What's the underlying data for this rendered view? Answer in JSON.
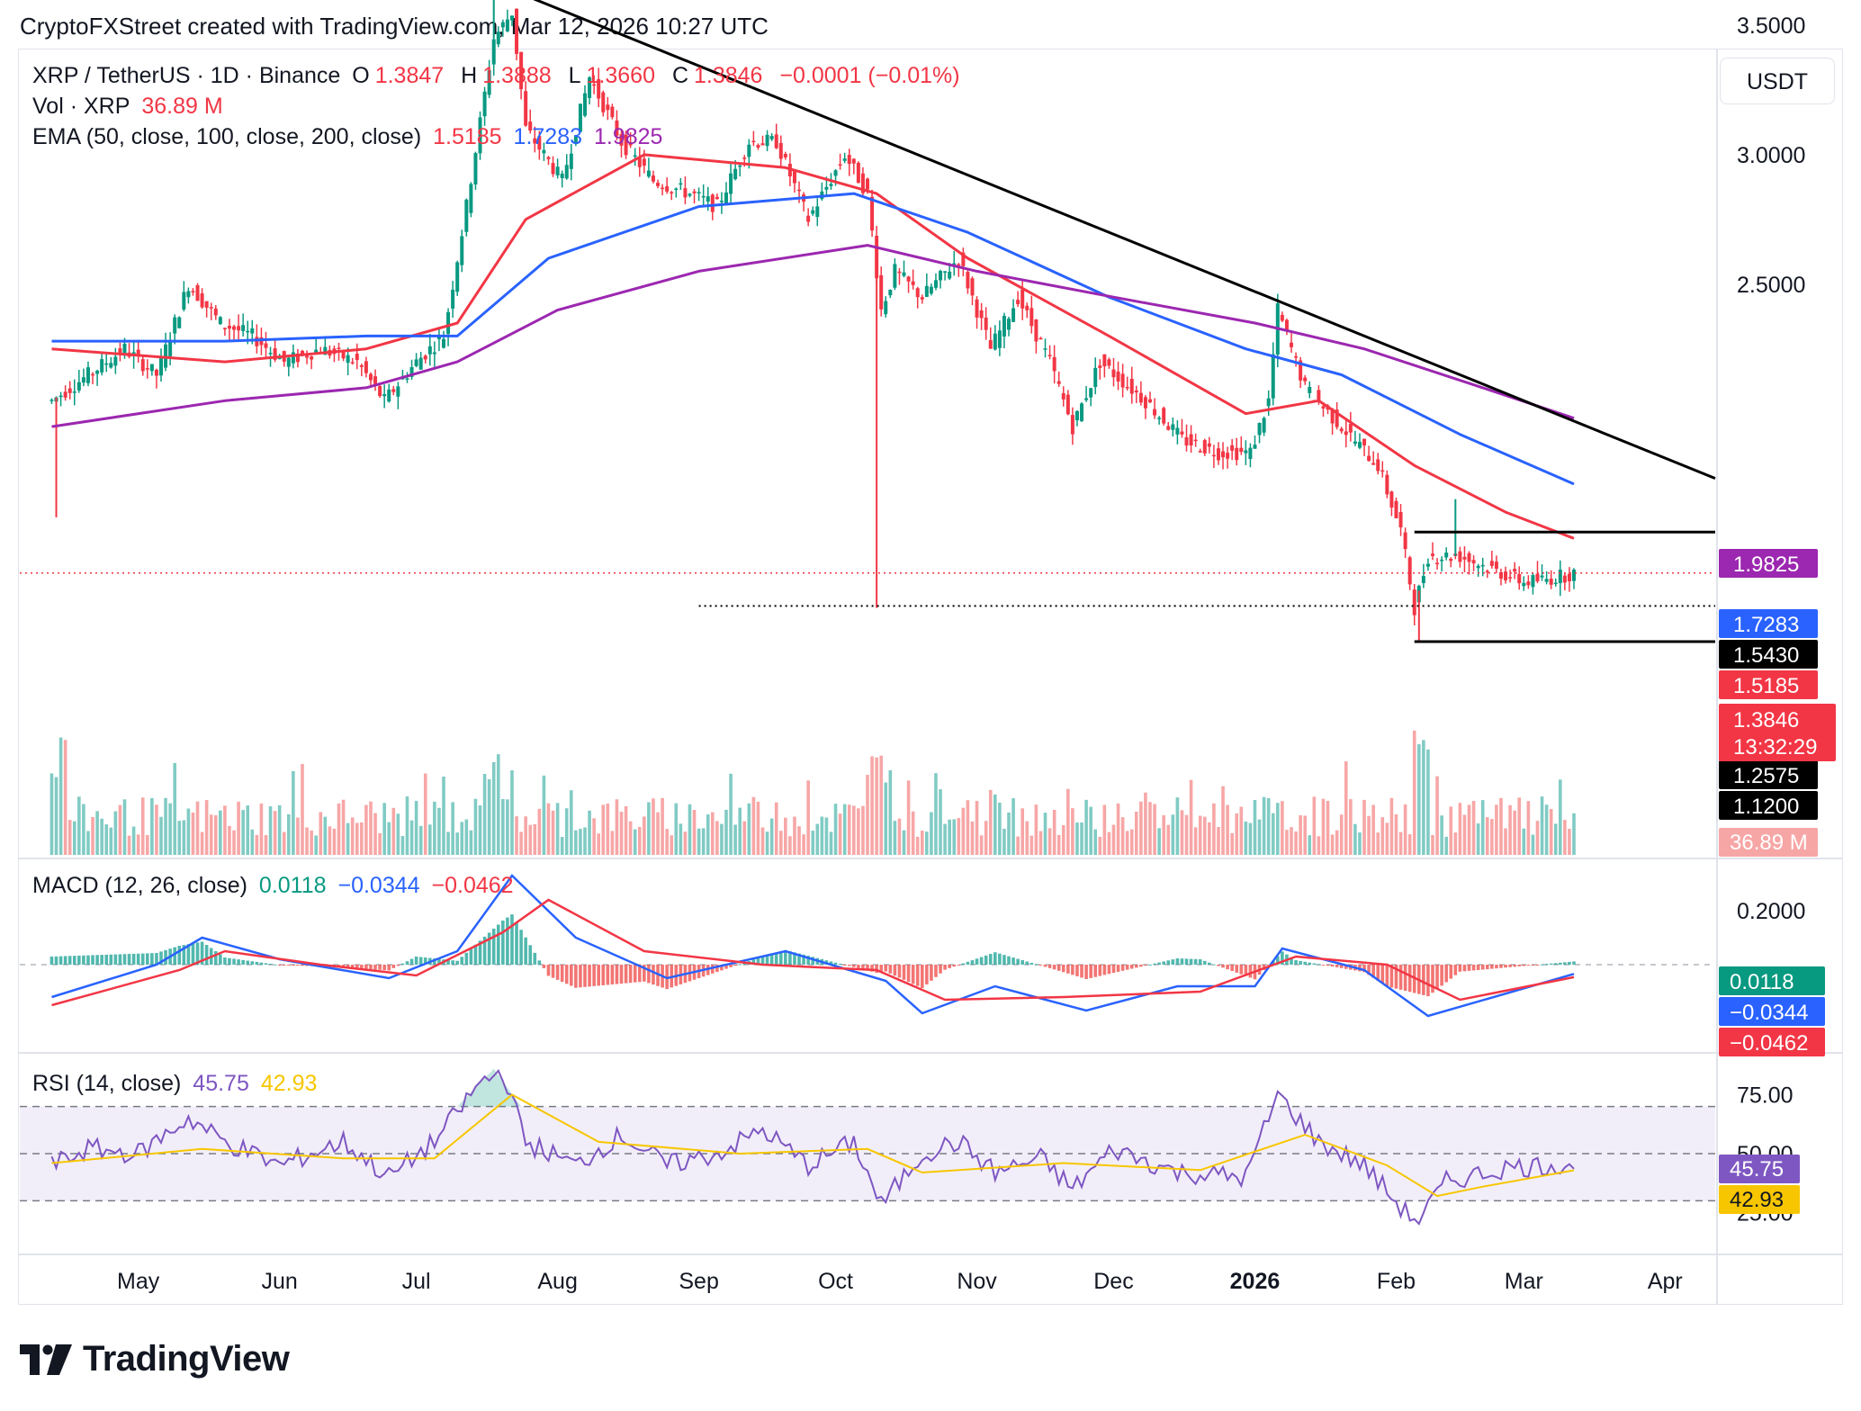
{
  "header": {
    "created_note": "CryptoFXStreet created with TradingView.com, Mar 12, 2026 10:27 UTC"
  },
  "legend": {
    "pair": "XRP / TetherUS · 1D · Binance",
    "o_label": "O",
    "open": "1.3847",
    "h_label": "H",
    "high": "1.3888",
    "l_label": "L",
    "low": "1.3660",
    "c_label": "C",
    "close": "1.3846",
    "change": "−0.0001 (−0.01%)",
    "vol_label": "Vol · XRP",
    "vol_value": "36.89 M",
    "ema_label": "EMA (50, close, 100, close, 200, close)",
    "ema50": "1.5185",
    "ema100": "1.7283",
    "ema200": "1.9825",
    "macd_label": "MACD (12, 26, close)",
    "macd_hist": "0.0118",
    "macd_line": "−0.0344",
    "macd_signal": "−0.0462",
    "rsi_label": "RSI (14, close)",
    "rsi": "45.75",
    "rsi_ma": "42.93"
  },
  "currency": "USDT",
  "colors": {
    "up": "#089981",
    "down": "#f23645",
    "ema50": "#f23645",
    "ema100": "#2962ff",
    "ema200": "#9c27b0",
    "rsi": "#7e57c2",
    "rsi_ma": "#f7c600",
    "vol_up": "#80cbc4",
    "vol_down": "#f7a6a6"
  },
  "brand": "TradingView",
  "chart_data": [
    {
      "type": "candlestick",
      "pane": "price",
      "symbol": "XRP / TetherUS",
      "interval": "1D",
      "exchange": "Binance",
      "x_ticks": [
        "May",
        "Jun",
        "Jul",
        "Aug",
        "Sep",
        "Oct",
        "Nov",
        "Dec",
        "2026",
        "Feb",
        "Mar",
        "Apr"
      ],
      "y_ticks": [
        "3.5000",
        "3.0000",
        "2.5000"
      ],
      "ylim": [
        0.95,
        3.75
      ],
      "price_path": [
        [
          "2025-04-12",
          2.05
        ],
        [
          "2025-04-20",
          2.15
        ],
        [
          "2025-04-28",
          2.25
        ],
        [
          "2025-05-05",
          2.15
        ],
        [
          "2025-05-12",
          2.5
        ],
        [
          "2025-05-19",
          2.35
        ],
        [
          "2025-05-26",
          2.3
        ],
        [
          "2025-06-02",
          2.2
        ],
        [
          "2025-06-10",
          2.25
        ],
        [
          "2025-06-18",
          2.2
        ],
        [
          "2025-06-24",
          2.05
        ],
        [
          "2025-07-01",
          2.2
        ],
        [
          "2025-07-07",
          2.3
        ],
        [
          "2025-07-12",
          2.8
        ],
        [
          "2025-07-18",
          3.45
        ],
        [
          "2025-07-22",
          3.55
        ],
        [
          "2025-07-25",
          3.1
        ],
        [
          "2025-08-02",
          2.9
        ],
        [
          "2025-08-08",
          3.3
        ],
        [
          "2025-08-15",
          3.05
        ],
        [
          "2025-08-22",
          2.9
        ],
        [
          "2025-08-30",
          2.85
        ],
        [
          "2025-09-05",
          2.8
        ],
        [
          "2025-09-12",
          3.05
        ],
        [
          "2025-09-18",
          3.05
        ],
        [
          "2025-09-25",
          2.75
        ],
        [
          "2025-10-03",
          3.0
        ],
        [
          "2025-10-08",
          2.85
        ],
        [
          "2025-10-11",
          2.4
        ],
        [
          "2025-10-14",
          2.55
        ],
        [
          "2025-10-20",
          2.45
        ],
        [
          "2025-10-28",
          2.6
        ],
        [
          "2025-11-04",
          2.25
        ],
        [
          "2025-11-10",
          2.45
        ],
        [
          "2025-11-17",
          2.2
        ],
        [
          "2025-11-22",
          1.95
        ],
        [
          "2025-11-28",
          2.2
        ],
        [
          "2025-12-08",
          2.05
        ],
        [
          "2025-12-16",
          1.9
        ],
        [
          "2025-12-24",
          1.85
        ],
        [
          "2025-12-31",
          1.85
        ],
        [
          "2026-01-04",
          2.05
        ],
        [
          "2026-01-06",
          2.4
        ],
        [
          "2026-01-12",
          2.1
        ],
        [
          "2026-01-20",
          1.95
        ],
        [
          "2026-01-28",
          1.8
        ],
        [
          "2026-02-02",
          1.55
        ],
        [
          "2026-02-05",
          1.25
        ],
        [
          "2026-02-08",
          1.45
        ],
        [
          "2026-02-15",
          1.45
        ],
        [
          "2026-02-22",
          1.4
        ],
        [
          "2026-03-01",
          1.35
        ],
        [
          "2026-03-06",
          1.36
        ],
        [
          "2026-03-12",
          1.3846
        ]
      ],
      "wicks": [
        [
          "2025-04-13",
          1.6
        ],
        [
          "2025-07-18",
          3.66
        ],
        [
          "2025-10-10",
          1.25
        ],
        [
          "2026-01-06",
          2.41
        ],
        [
          "2026-02-06",
          1.12
        ],
        [
          "2026-02-14",
          1.67
        ]
      ],
      "ema_series": [
        {
          "name": "EMA 50",
          "last": 1.5185,
          "points": [
            [
              "2025-04-12",
              2.25
            ],
            [
              "2025-05-20",
              2.2
            ],
            [
              "2025-06-20",
              2.25
            ],
            [
              "2025-07-10",
              2.35
            ],
            [
              "2025-07-25",
              2.75
            ],
            [
              "2025-08-20",
              3.0
            ],
            [
              "2025-09-20",
              2.95
            ],
            [
              "2025-10-10",
              2.85
            ],
            [
              "2025-10-30",
              2.6
            ],
            [
              "2025-11-30",
              2.3
            ],
            [
              "2025-12-30",
              2.0
            ],
            [
              "2026-01-15",
              2.05
            ],
            [
              "2026-02-05",
              1.8
            ],
            [
              "2026-02-25",
              1.62
            ],
            [
              "2026-03-12",
              1.5185
            ]
          ]
        },
        {
          "name": "EMA 100",
          "last": 1.7283,
          "points": [
            [
              "2025-04-12",
              2.28
            ],
            [
              "2025-05-20",
              2.28
            ],
            [
              "2025-06-20",
              2.3
            ],
            [
              "2025-07-10",
              2.3
            ],
            [
              "2025-07-30",
              2.6
            ],
            [
              "2025-09-01",
              2.8
            ],
            [
              "2025-10-05",
              2.85
            ],
            [
              "2025-10-30",
              2.7
            ],
            [
              "2025-11-30",
              2.45
            ],
            [
              "2025-12-30",
              2.25
            ],
            [
              "2026-01-20",
              2.15
            ],
            [
              "2026-02-15",
              1.92
            ],
            [
              "2026-03-12",
              1.7283
            ]
          ]
        },
        {
          "name": "EMA 200",
          "last": 1.9825,
          "points": [
            [
              "2025-04-12",
              1.95
            ],
            [
              "2025-05-20",
              2.05
            ],
            [
              "2025-06-20",
              2.1
            ],
            [
              "2025-07-10",
              2.2
            ],
            [
              "2025-08-01",
              2.4
            ],
            [
              "2025-09-01",
              2.55
            ],
            [
              "2025-10-08",
              2.65
            ],
            [
              "2025-11-01",
              2.55
            ],
            [
              "2025-12-01",
              2.45
            ],
            [
              "2026-01-01",
              2.35
            ],
            [
              "2026-01-25",
              2.25
            ],
            [
              "2026-02-20",
              2.1
            ],
            [
              "2026-03-12",
              1.9825
            ]
          ]
        }
      ],
      "trendline": [
        [
          "2025-07-20",
          3.65
        ],
        [
          "2026-04-01",
          1.75
        ]
      ],
      "horizontal_levels": [
        {
          "value": 1.543,
          "from": "2026-02-05"
        },
        {
          "value": 1.2575,
          "from": "2025-09-01",
          "style": "dotted"
        },
        {
          "value": 1.12,
          "from": "2026-02-05"
        }
      ],
      "price_labels": [
        1.9825,
        1.7283,
        1.543,
        1.5185,
        1.3846,
        1.2575,
        1.12
      ],
      "countdown": "13:32:29",
      "volume_badge": "36.89 M"
    },
    {
      "type": "area",
      "pane": "macd",
      "y_ticks": [
        "0.2000"
      ],
      "ylim": [
        -0.32,
        0.38
      ],
      "last": {
        "histogram": 0.0118,
        "macd": -0.0344,
        "signal": -0.0462
      },
      "macd_path": [
        [
          "2025-04-12",
          -0.12
        ],
        [
          "2025-05-05",
          0.0
        ],
        [
          "2025-05-15",
          0.1
        ],
        [
          "2025-06-01",
          0.02
        ],
        [
          "2025-06-25",
          -0.05
        ],
        [
          "2025-07-10",
          0.05
        ],
        [
          "2025-07-22",
          0.33
        ],
        [
          "2025-08-05",
          0.1
        ],
        [
          "2025-08-25",
          -0.05
        ],
        [
          "2025-09-20",
          0.05
        ],
        [
          "2025-10-12",
          -0.06
        ],
        [
          "2025-10-20",
          -0.18
        ],
        [
          "2025-11-05",
          -0.08
        ],
        [
          "2025-11-25",
          -0.17
        ],
        [
          "2025-12-15",
          -0.08
        ],
        [
          "2026-01-01",
          -0.08
        ],
        [
          "2026-01-07",
          0.06
        ],
        [
          "2026-01-25",
          -0.02
        ],
        [
          "2026-02-08",
          -0.19
        ],
        [
          "2026-03-12",
          -0.0344
        ]
      ],
      "signal_path": [
        [
          "2025-04-12",
          -0.15
        ],
        [
          "2025-05-10",
          -0.02
        ],
        [
          "2025-05-20",
          0.05
        ],
        [
          "2025-06-10",
          0.0
        ],
        [
          "2025-07-01",
          -0.04
        ],
        [
          "2025-07-20",
          0.12
        ],
        [
          "2025-07-30",
          0.24
        ],
        [
          "2025-08-20",
          0.05
        ],
        [
          "2025-09-15",
          0.0
        ],
        [
          "2025-10-10",
          -0.02
        ],
        [
          "2025-10-25",
          -0.13
        ],
        [
          "2025-11-20",
          -0.12
        ],
        [
          "2025-12-20",
          -0.1
        ],
        [
          "2026-01-10",
          0.03
        ],
        [
          "2026-01-30",
          0.0
        ],
        [
          "2026-02-15",
          -0.13
        ],
        [
          "2026-03-12",
          -0.0462
        ]
      ]
    },
    {
      "type": "line",
      "pane": "rsi",
      "y_ticks": [
        "75.00",
        "50.00",
        "25.00"
      ],
      "ylim": [
        8,
        92
      ],
      "bands": [
        70,
        50,
        30
      ],
      "rsi_path": [
        [
          "2025-04-12",
          45
        ],
        [
          "2025-04-20",
          52
        ],
        [
          "2025-05-01",
          50
        ],
        [
          "2025-05-12",
          65
        ],
        [
          "2025-05-20",
          55
        ],
        [
          "2025-06-01",
          45
        ],
        [
          "2025-06-15",
          55
        ],
        [
          "2025-06-25",
          40
        ],
        [
          "2025-07-05",
          55
        ],
        [
          "2025-07-15",
          80
        ],
        [
          "2025-07-20",
          85
        ],
        [
          "2025-07-25",
          55
        ],
        [
          "2025-08-05",
          45
        ],
        [
          "2025-08-15",
          58
        ],
        [
          "2025-08-25",
          45
        ],
        [
          "2025-09-05",
          50
        ],
        [
          "2025-09-15",
          60
        ],
        [
          "2025-09-25",
          45
        ],
        [
          "2025-10-05",
          55
        ],
        [
          "2025-10-11",
          28
        ],
        [
          "2025-10-20",
          50
        ],
        [
          "2025-10-28",
          55
        ],
        [
          "2025-11-05",
          42
        ],
        [
          "2025-11-15",
          48
        ],
        [
          "2025-11-22",
          35
        ],
        [
          "2025-12-01",
          52
        ],
        [
          "2025-12-15",
          42
        ],
        [
          "2025-12-30",
          40
        ],
        [
          "2026-01-06",
          75
        ],
        [
          "2026-01-15",
          55
        ],
        [
          "2026-01-25",
          45
        ],
        [
          "2026-02-03",
          25
        ],
        [
          "2026-02-06",
          22
        ],
        [
          "2026-02-12",
          38
        ],
        [
          "2026-02-25",
          44
        ],
        [
          "2026-03-12",
          45.75
        ]
      ],
      "rsi_ma_path": [
        [
          "2025-04-12",
          46
        ],
        [
          "2025-05-15",
          52
        ],
        [
          "2025-06-15",
          48
        ],
        [
          "2025-07-05",
          48
        ],
        [
          "2025-07-22",
          75
        ],
        [
          "2025-08-10",
          55
        ],
        [
          "2025-09-10",
          50
        ],
        [
          "2025-10-08",
          52
        ],
        [
          "2025-10-20",
          42
        ],
        [
          "2025-11-20",
          46
        ],
        [
          "2025-12-20",
          43
        ],
        [
          "2026-01-12",
          58
        ],
        [
          "2026-01-30",
          45
        ],
        [
          "2026-02-10",
          32
        ],
        [
          "2026-02-20",
          36
        ],
        [
          "2026-03-12",
          42.93
        ]
      ],
      "last": {
        "rsi": 45.75,
        "rsi_ma": 42.93
      }
    }
  ]
}
